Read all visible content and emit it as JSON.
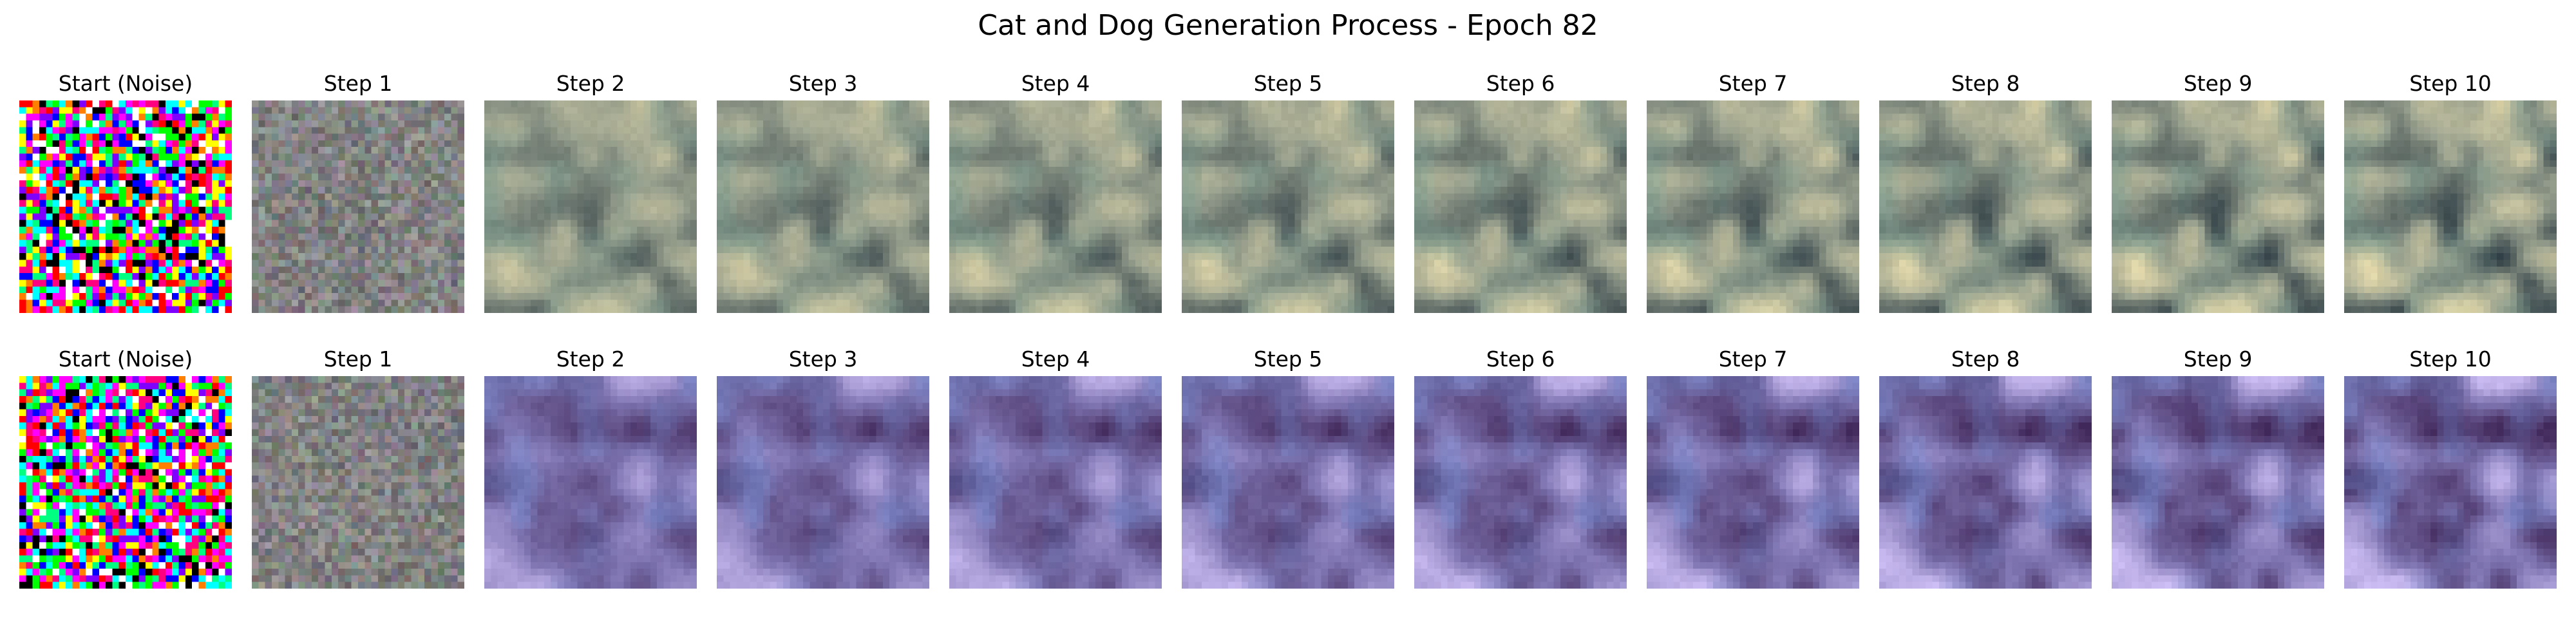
{
  "figure": {
    "title": "Cat and Dog Generation Process - Epoch 82"
  },
  "rows": [
    {
      "panels": [
        {
          "title": "Start (Noise)",
          "image": "random-color-noise"
        },
        {
          "title": "Step 1",
          "image": "grayish-noise"
        },
        {
          "title": "Step 2",
          "image": "blurred-cat-dog-sample-1"
        },
        {
          "title": "Step 3",
          "image": "blurred-cat-dog-sample-1"
        },
        {
          "title": "Step 4",
          "image": "blurred-cat-dog-sample-1"
        },
        {
          "title": "Step 5",
          "image": "blurred-cat-dog-sample-1"
        },
        {
          "title": "Step 6",
          "image": "blurred-cat-dog-sample-1"
        },
        {
          "title": "Step 7",
          "image": "blurred-cat-dog-sample-1"
        },
        {
          "title": "Step 8",
          "image": "blurred-cat-dog-sample-1"
        },
        {
          "title": "Step 9",
          "image": "blurred-cat-dog-sample-1"
        },
        {
          "title": "Step 10",
          "image": "blurred-cat-dog-sample-1"
        }
      ]
    },
    {
      "panels": [
        {
          "title": "Start (Noise)",
          "image": "random-color-noise"
        },
        {
          "title": "Step 1",
          "image": "grayish-noise"
        },
        {
          "title": "Step 2",
          "image": "blurred-cat-dog-sample-2"
        },
        {
          "title": "Step 3",
          "image": "blurred-cat-dog-sample-2"
        },
        {
          "title": "Step 4",
          "image": "blurred-cat-dog-sample-2"
        },
        {
          "title": "Step 5",
          "image": "blurred-cat-dog-sample-2"
        },
        {
          "title": "Step 6",
          "image": "blurred-cat-dog-sample-2"
        },
        {
          "title": "Step 7",
          "image": "blurred-cat-dog-sample-2"
        },
        {
          "title": "Step 8",
          "image": "blurred-cat-dog-sample-2"
        },
        {
          "title": "Step 9",
          "image": "blurred-cat-dog-sample-2"
        },
        {
          "title": "Step 10",
          "image": "blurred-cat-dog-sample-2"
        }
      ]
    }
  ]
}
